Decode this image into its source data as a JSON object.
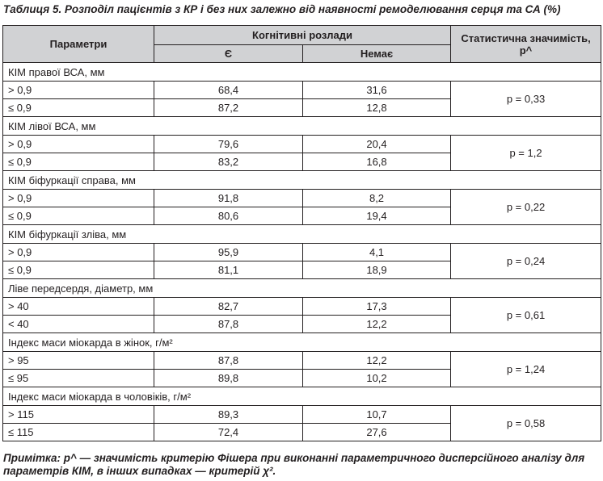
{
  "caption": "Таблиця 5. Розподіл пацієнтів з КР і без них залежно від наявності ремоделювання серця та СА (%)",
  "header": {
    "params": "Параметри",
    "cognitive": "Когнітивні розлади",
    "yes": "Є",
    "no": "Немає",
    "stat": "Статистична значимість, р^"
  },
  "groups": [
    {
      "title": "КІМ правої ВСА, мм",
      "p": "р = 0,33",
      "rows": [
        {
          "label": "> 0,9",
          "yes": "68,4",
          "no": "31,6"
        },
        {
          "label": "≤ 0,9",
          "yes": "87,2",
          "no": "12,8"
        }
      ]
    },
    {
      "title": "КІМ лівої ВСА, мм",
      "p": "р = 1,2",
      "rows": [
        {
          "label": "> 0,9",
          "yes": "79,6",
          "no": "20,4"
        },
        {
          "label": "≤ 0,9",
          "yes": "83,2",
          "no": "16,8"
        }
      ]
    },
    {
      "title": "КІМ біфуркації справа, мм",
      "p": "р = 0,22",
      "rows": [
        {
          "label": "> 0,9",
          "yes": "91,8",
          "no": "8,2"
        },
        {
          "label": "≤ 0,9",
          "yes": "80,6",
          "no": "19,4"
        }
      ]
    },
    {
      "title": "КІМ біфуркації зліва, мм",
      "p": "р = 0,24",
      "rows": [
        {
          "label": "> 0,9",
          "yes": "95,9",
          "no": "4,1"
        },
        {
          "label": "≤ 0,9",
          "yes": "81,1",
          "no": "18,9"
        }
      ]
    },
    {
      "title": "Ліве передсердя, діаметр, мм",
      "p": "р = 0,61",
      "rows": [
        {
          "label": "> 40",
          "yes": "82,7",
          "no": "17,3"
        },
        {
          "label": "< 40",
          "yes": "87,8",
          "no": "12,2"
        }
      ]
    },
    {
      "title": "Індекс маси міокарда в жінок, г/м²",
      "p": "р = 1,24",
      "rows": [
        {
          "label": "> 95",
          "yes": "87,8",
          "no": "12,2"
        },
        {
          "label": "≤ 95",
          "yes": "89,8",
          "no": "10,2"
        }
      ]
    },
    {
      "title": "Індекс маси міокарда в чоловіків, г/м²",
      "p": "р = 0,58",
      "rows": [
        {
          "label": "> 115",
          "yes": "89,3",
          "no": "10,7"
        },
        {
          "label": "≤ 115",
          "yes": "72,4",
          "no": "27,6"
        }
      ]
    }
  ],
  "footnote": "Примітка: р^ — значимість критерію Фішера при виконанні параметричного дисперсійного аналізу для параметрів КІМ, в інших випадках — критерій χ²."
}
